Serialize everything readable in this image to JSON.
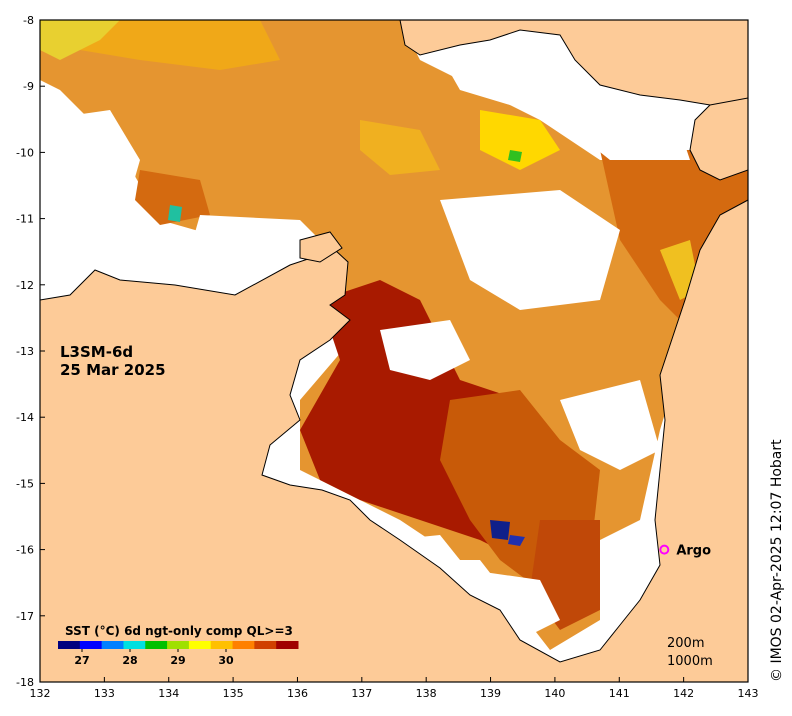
{
  "map": {
    "lon_range": [
      132,
      143
    ],
    "lat_range": [
      -18,
      -8
    ],
    "lon_ticks": [
      "132",
      "133",
      "134",
      "135",
      "136",
      "137",
      "138",
      "139",
      "140",
      "141",
      "142",
      "143"
    ],
    "lat_ticks": [
      "-8",
      "-9",
      "-10",
      "-11",
      "-12",
      "-13",
      "-14",
      "-15",
      "-16",
      "-17",
      "-18"
    ]
  },
  "title": {
    "product": "L3SM-6d",
    "date": "25 Mar 2025"
  },
  "colorbar": {
    "label": "SST (°C) 6d ngt-only comp QL>=3",
    "range": [
      26.5,
      31.5
    ],
    "ticks": [
      "27",
      "28",
      "29",
      "30"
    ],
    "colors": [
      "#00007f",
      "#0000ff",
      "#0080ff",
      "#00e0e0",
      "#00c000",
      "#a0e000",
      "#ffff00",
      "#ffc000",
      "#ff8000",
      "#d04000",
      "#a00000"
    ]
  },
  "argo": {
    "label": "Argo",
    "lon": 141.7,
    "lat": -16.0,
    "color": "#ff00ff"
  },
  "depth_labels": [
    "200m",
    "1000m"
  ],
  "credit": "© IMOS 02-Apr-2025 12:07 Hobart",
  "palette": {
    "land": "#fdcb98",
    "ocean": "#ffffff",
    "sst_warm": "#e07b10",
    "sst_hot": "#a81800",
    "sst_mild": "#f0a818"
  }
}
